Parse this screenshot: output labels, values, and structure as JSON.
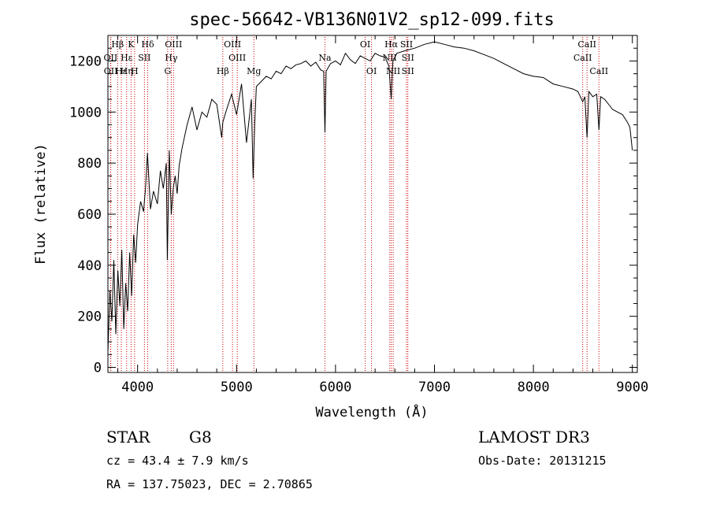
{
  "chart_data": {
    "type": "line",
    "title": "spec-56642-VB136N01V2_sp12-099.fits",
    "xlabel": "Wavelength (Å)",
    "ylabel": "Flux (relative)",
    "xlim": [
      3700,
      9050
    ],
    "ylim": [
      -20,
      1300
    ],
    "xticks": [
      4000,
      5000,
      6000,
      7000,
      8000,
      9000
    ],
    "yticks": [
      0,
      200,
      400,
      600,
      800,
      1000,
      1200
    ],
    "line_color": "#000000",
    "marker_color": "#cc0000",
    "series": [
      {
        "name": "flux",
        "x": [
          3700,
          3720,
          3740,
          3760,
          3780,
          3800,
          3820,
          3840,
          3860,
          3880,
          3900,
          3920,
          3940,
          3960,
          3980,
          4000,
          4030,
          4060,
          4080,
          4100,
          4130,
          4160,
          4200,
          4230,
          4260,
          4290,
          4300,
          4320,
          4340,
          4360,
          4380,
          4400,
          4420,
          4450,
          4500,
          4550,
          4600,
          4650,
          4700,
          4750,
          4800,
          4850,
          4861,
          4900,
          4950,
          5000,
          5050,
          5100,
          5150,
          5167,
          5183,
          5200,
          5250,
          5300,
          5350,
          5400,
          5450,
          5500,
          5550,
          5600,
          5650,
          5700,
          5750,
          5800,
          5850,
          5880,
          5893,
          5905,
          5950,
          6000,
          6050,
          6100,
          6150,
          6200,
          6250,
          6300,
          6350,
          6400,
          6450,
          6500,
          6540,
          6563,
          6580,
          6620,
          6700,
          6800,
          6900,
          7000,
          7100,
          7200,
          7300,
          7400,
          7500,
          7600,
          7700,
          7800,
          7900,
          8000,
          8100,
          8200,
          8300,
          8400,
          8450,
          8498,
          8520,
          8542,
          8560,
          8600,
          8640,
          8662,
          8680,
          8720,
          8760,
          8800,
          8850,
          8900,
          8950,
          8975,
          9000
        ],
        "values": [
          60,
          300,
          180,
          420,
          130,
          380,
          240,
          460,
          150,
          330,
          220,
          450,
          280,
          520,
          410,
          560,
          650,
          610,
          700,
          840,
          620,
          690,
          640,
          770,
          700,
          800,
          420,
          850,
          600,
          700,
          750,
          680,
          790,
          860,
          950,
          1020,
          930,
          1000,
          980,
          1050,
          1030,
          900,
          960,
          1010,
          1070,
          990,
          1110,
          880,
          1050,
          740,
          950,
          1100,
          1120,
          1140,
          1130,
          1160,
          1150,
          1180,
          1170,
          1185,
          1190,
          1200,
          1180,
          1195,
          1165,
          1160,
          920,
          1160,
          1190,
          1200,
          1185,
          1230,
          1205,
          1190,
          1220,
          1210,
          1200,
          1230,
          1220,
          1215,
          1180,
          1050,
          1200,
          1230,
          1240,
          1250,
          1265,
          1275,
          1265,
          1255,
          1250,
          1240,
          1225,
          1210,
          1190,
          1170,
          1150,
          1140,
          1135,
          1110,
          1100,
          1090,
          1080,
          1040,
          1060,
          900,
          1080,
          1060,
          1070,
          930,
          1060,
          1050,
          1030,
          1010,
          1000,
          990,
          960,
          940,
          850
        ]
      }
    ],
    "annotations": [
      {
        "label": "Hβ",
        "wavelength": 3798,
        "row": 1
      },
      {
        "label": "OII",
        "wavelength": 3727,
        "row": 2
      },
      {
        "label": "OII",
        "wavelength": 3729,
        "row": 3
      },
      {
        "label": "Hε",
        "wavelength": 3835,
        "row": 3
      },
      {
        "label": "Hη",
        "wavelength": 3889,
        "row": 3
      },
      {
        "label": "K",
        "wavelength": 3934,
        "row": 1
      },
      {
        "label": "Hε",
        "wavelength": 3889,
        "row": 2
      },
      {
        "label": "SII",
        "wavelength": 4069,
        "row": 2
      },
      {
        "label": "H",
        "wavelength": 3969,
        "row": 3
      },
      {
        "label": "Hδ",
        "wavelength": 4102,
        "row": 1
      },
      {
        "label": "OIII",
        "wavelength": 4363,
        "row": 1
      },
      {
        "label": "Hγ",
        "wavelength": 4340,
        "row": 2
      },
      {
        "label": "G",
        "wavelength": 4304,
        "row": 3
      },
      {
        "label": "Hβ",
        "wavelength": 4861,
        "row": 3
      },
      {
        "label": "OIII",
        "wavelength": 4959,
        "row": 1
      },
      {
        "label": "OIII",
        "wavelength": 5007,
        "row": 2
      },
      {
        "label": "Mg",
        "wavelength": 5175,
        "row": 3
      },
      {
        "label": "Na",
        "wavelength": 5893,
        "row": 2
      },
      {
        "label": "OI",
        "wavelength": 6300,
        "row": 1
      },
      {
        "label": "OI",
        "wavelength": 6364,
        "row": 3
      },
      {
        "label": "Hα",
        "wavelength": 6563,
        "row": 1
      },
      {
        "label": "NII",
        "wavelength": 6548,
        "row": 2
      },
      {
        "label": "NII",
        "wavelength": 6583,
        "row": 3
      },
      {
        "label": "SII",
        "wavelength": 6717,
        "row": 1
      },
      {
        "label": "SII",
        "wavelength": 6731,
        "row": 2
      },
      {
        "label": "SII",
        "wavelength": 6731,
        "row": 3
      },
      {
        "label": "CaII",
        "wavelength": 8542,
        "row": 1
      },
      {
        "label": "CaII",
        "wavelength": 8498,
        "row": 2
      },
      {
        "label": "CaII",
        "wavelength": 8662,
        "row": 3
      }
    ]
  },
  "info": {
    "object_class": "STAR",
    "subclass": "G8",
    "survey": "LAMOST DR3",
    "cz": "cz = 43.4 ± 7.9 km/s",
    "obs_date": "Obs-Date: 20131215",
    "coords": "RA = 137.75023, DEC =   2.70865"
  }
}
